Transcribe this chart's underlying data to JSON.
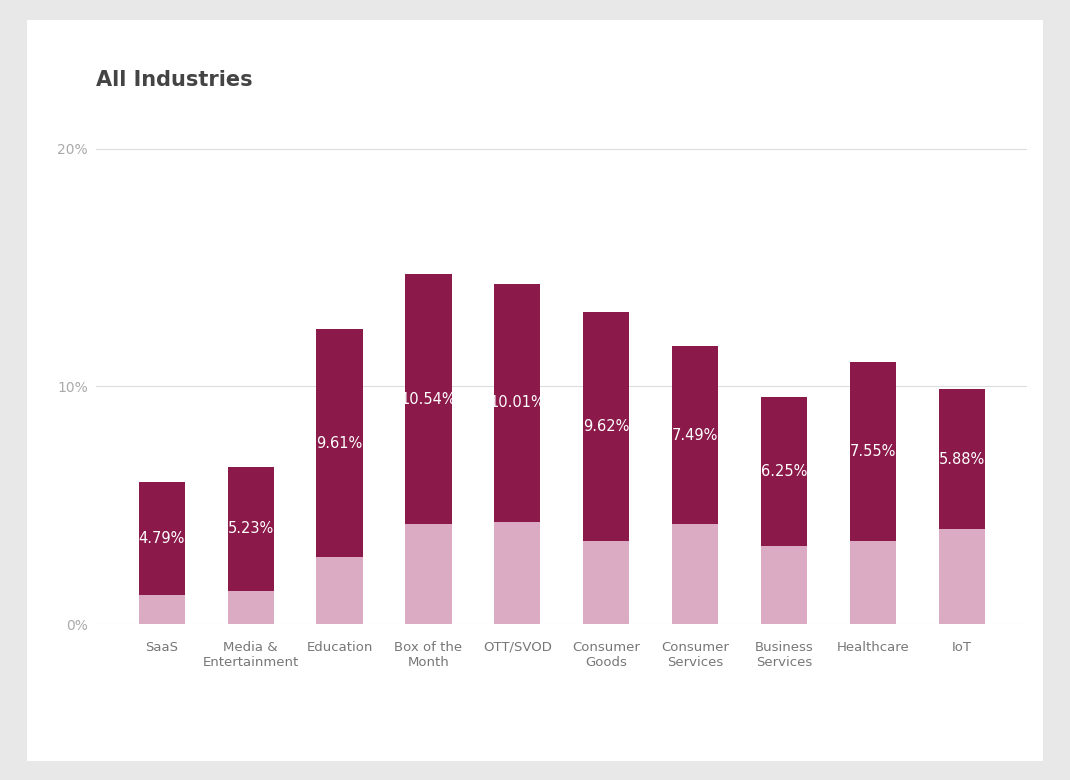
{
  "title": "All Industries",
  "categories": [
    "SaaS",
    "Media &\nEntertainment",
    "Education",
    "Box of the\nMonth",
    "OTT/SVOD",
    "Consumer\nGoods",
    "Consumer\nServices",
    "Business\nServices",
    "Healthcare",
    "IoT"
  ],
  "dark_values": [
    4.79,
    5.23,
    9.61,
    10.54,
    10.01,
    9.62,
    7.49,
    6.25,
    7.55,
    5.88
  ],
  "light_values": [
    1.2,
    1.4,
    2.8,
    4.2,
    4.3,
    3.5,
    4.2,
    3.3,
    3.5,
    4.0
  ],
  "labels": [
    "4.79%",
    "5.23%",
    "9.61%",
    "10.54%",
    "10.01%",
    "9.62%",
    "7.49%",
    "6.25%",
    "7.55%",
    "5.88%"
  ],
  "dark_color": "#8B1A4A",
  "light_color": "#DBAAC3",
  "background_color": "#FFFFFF",
  "outer_background": "#E8E8E8",
  "title_color": "#444444",
  "ytick_labels": [
    "0%",
    "10%",
    "20%"
  ],
  "ytick_values": [
    0,
    10,
    20
  ],
  "ylim": [
    0,
    22
  ],
  "bar_width": 0.52,
  "title_fontsize": 15,
  "label_fontsize": 10.5,
  "tick_fontsize": 10
}
